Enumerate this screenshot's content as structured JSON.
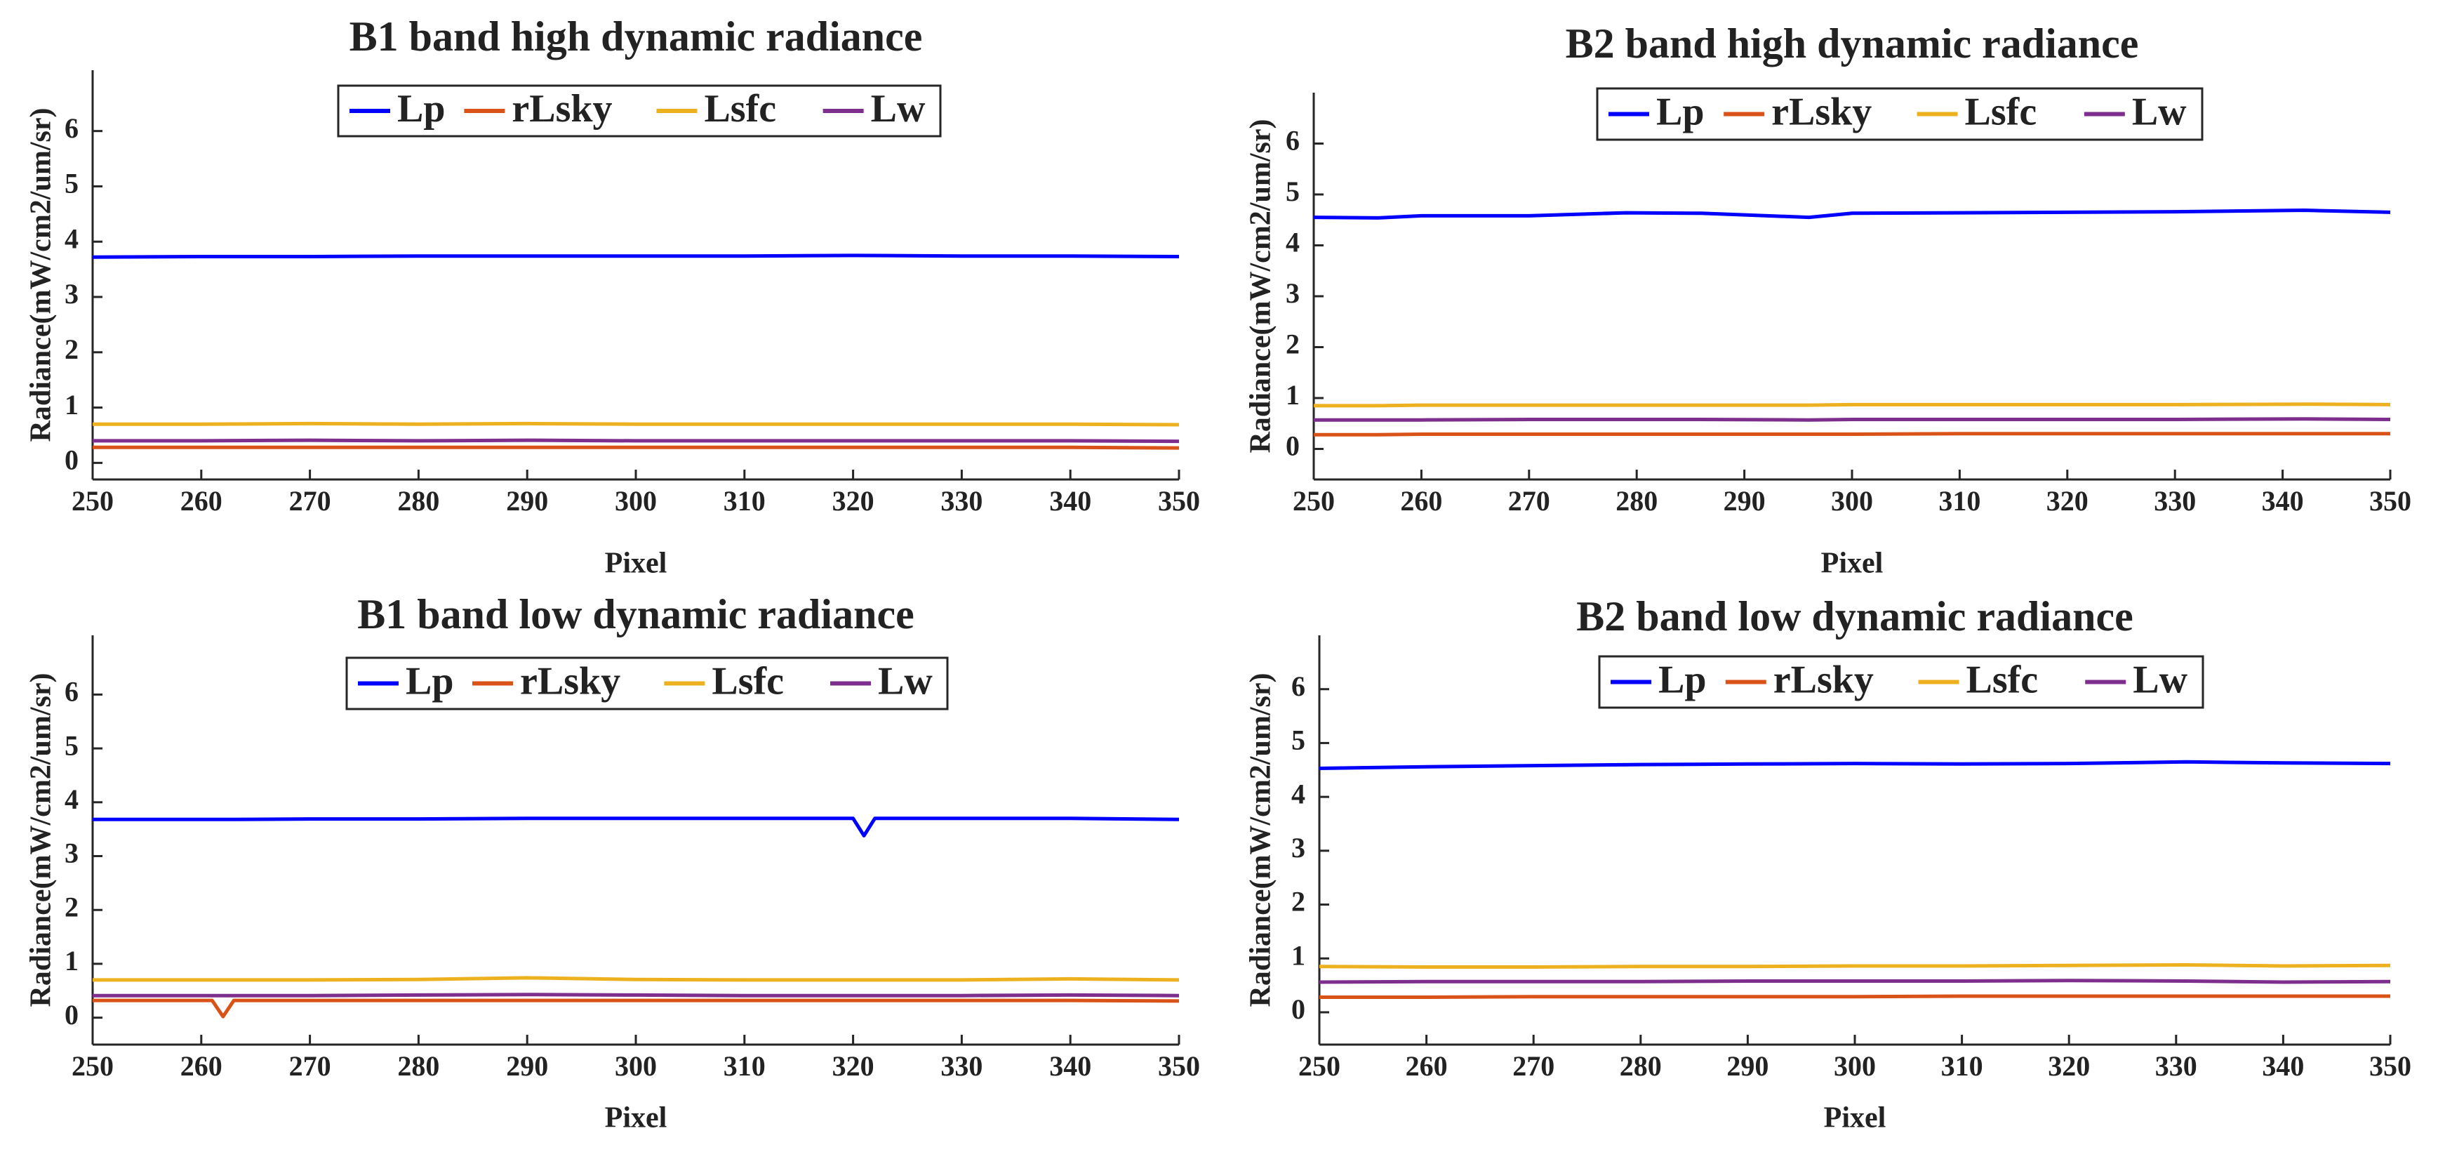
{
  "figure": {
    "background": "#ffffff",
    "axis_color": "#262626"
  },
  "legend_labels": [
    "Lp",
    "rLsky",
    "Lsfc",
    "Lw"
  ],
  "series_colors": {
    "Lp": "#0000ff",
    "rLsky": "#d95319",
    "Lsfc": "#edb120",
    "Lw": "#7e2f8e"
  },
  "chart_data": [
    {
      "type": "line",
      "title": "B1 band high dynamic radiance",
      "xlabel": "Pixel",
      "ylabel": "Radiance(mW/cm2/um/sr)",
      "xlim": [
        250,
        350
      ],
      "ylim": [
        -0.3,
        7.1
      ],
      "xticks": [
        "250",
        "260",
        "270",
        "280",
        "290",
        "300",
        "310",
        "320",
        "330",
        "340",
        "350"
      ],
      "yticks": [
        "0",
        "1",
        "2",
        "3",
        "4",
        "5",
        "6"
      ],
      "legend": "top-center",
      "x": [
        250,
        260,
        270,
        280,
        290,
        300,
        310,
        320,
        330,
        340,
        350
      ],
      "series": [
        {
          "name": "Lp",
          "values": [
            3.72,
            3.73,
            3.73,
            3.74,
            3.74,
            3.74,
            3.74,
            3.75,
            3.74,
            3.74,
            3.73
          ]
        },
        {
          "name": "rLsky",
          "values": [
            0.28,
            0.28,
            0.28,
            0.28,
            0.28,
            0.28,
            0.28,
            0.28,
            0.28,
            0.28,
            0.27
          ]
        },
        {
          "name": "Lsfc",
          "values": [
            0.7,
            0.7,
            0.71,
            0.7,
            0.71,
            0.7,
            0.7,
            0.7,
            0.7,
            0.7,
            0.69
          ]
        },
        {
          "name": "Lw",
          "values": [
            0.4,
            0.4,
            0.41,
            0.4,
            0.41,
            0.4,
            0.4,
            0.4,
            0.4,
            0.4,
            0.39
          ]
        }
      ]
    },
    {
      "type": "line",
      "title": "B2 band high dynamic radiance",
      "xlabel": "Pixel",
      "ylabel": "Radiance(mW/cm2/um/sr)",
      "xlim": [
        250,
        350
      ],
      "ylim": [
        -0.6,
        7.0
      ],
      "xticks": [
        "250",
        "260",
        "270",
        "280",
        "290",
        "300",
        "310",
        "320",
        "330",
        "340",
        "350"
      ],
      "yticks": [
        "0",
        "1",
        "2",
        "3",
        "4",
        "5",
        "6"
      ],
      "legend": "top-center",
      "x": [
        250,
        256,
        260,
        270,
        279,
        286,
        296,
        300,
        310,
        320,
        330,
        342,
        350
      ],
      "series": [
        {
          "name": "Lp",
          "values": [
            4.55,
            4.54,
            4.58,
            4.58,
            4.64,
            4.63,
            4.55,
            4.63,
            4.64,
            4.65,
            4.66,
            4.69,
            4.65
          ]
        },
        {
          "name": "rLsky",
          "values": [
            0.28,
            0.28,
            0.29,
            0.29,
            0.29,
            0.29,
            0.29,
            0.29,
            0.3,
            0.3,
            0.3,
            0.3,
            0.3
          ]
        },
        {
          "name": "Lsfc",
          "values": [
            0.85,
            0.85,
            0.86,
            0.86,
            0.86,
            0.86,
            0.86,
            0.87,
            0.87,
            0.87,
            0.87,
            0.88,
            0.87
          ]
        },
        {
          "name": "Lw",
          "values": [
            0.57,
            0.57,
            0.57,
            0.58,
            0.58,
            0.58,
            0.57,
            0.58,
            0.58,
            0.58,
            0.58,
            0.59,
            0.58
          ]
        }
      ]
    },
    {
      "type": "line",
      "title": "B1 band low dynamic radiance",
      "xlabel": "Pixel",
      "ylabel": "Radiance(mW/cm2/um/sr)",
      "xlim": [
        250,
        350
      ],
      "ylim": [
        -0.5,
        7.1
      ],
      "xticks": [
        "250",
        "260",
        "270",
        "280",
        "290",
        "300",
        "310",
        "320",
        "330",
        "340",
        "350"
      ],
      "yticks": [
        "0",
        "1",
        "2",
        "3",
        "4",
        "5",
        "6"
      ],
      "legend": "top-center",
      "x": [
        250,
        261,
        262,
        263,
        270,
        280,
        290,
        300,
        310,
        320,
        321,
        322,
        330,
        340,
        350
      ],
      "series": [
        {
          "name": "Lp",
          "values": [
            3.68,
            3.68,
            3.68,
            3.68,
            3.69,
            3.69,
            3.7,
            3.7,
            3.7,
            3.7,
            3.38,
            3.7,
            3.7,
            3.7,
            3.68
          ]
        },
        {
          "name": "rLsky",
          "values": [
            0.32,
            0.32,
            0.02,
            0.32,
            0.32,
            0.32,
            0.32,
            0.32,
            0.32,
            0.32,
            0.32,
            0.32,
            0.32,
            0.32,
            0.31
          ]
        },
        {
          "name": "Lsfc",
          "values": [
            0.7,
            0.7,
            0.7,
            0.7,
            0.7,
            0.71,
            0.74,
            0.71,
            0.7,
            0.7,
            0.7,
            0.7,
            0.7,
            0.72,
            0.7
          ]
        },
        {
          "name": "Lw",
          "values": [
            0.41,
            0.41,
            0.41,
            0.41,
            0.41,
            0.42,
            0.43,
            0.42,
            0.41,
            0.41,
            0.41,
            0.41,
            0.41,
            0.42,
            0.41
          ]
        }
      ]
    },
    {
      "type": "line",
      "title": "B2 band low dynamic radiance",
      "xlabel": "Pixel",
      "ylabel": "Radiance(mW/cm2/um/sr)",
      "xlim": [
        250,
        350
      ],
      "ylim": [
        -0.6,
        7.0
      ],
      "xticks": [
        "250",
        "260",
        "270",
        "280",
        "290",
        "300",
        "310",
        "320",
        "330",
        "340",
        "350"
      ],
      "yticks": [
        "0",
        "1",
        "2",
        "3",
        "4",
        "5",
        "6"
      ],
      "legend": "top-center",
      "x": [
        250,
        260,
        270,
        280,
        290,
        300,
        310,
        320,
        331,
        340,
        350
      ],
      "series": [
        {
          "name": "Lp",
          "values": [
            4.53,
            4.56,
            4.58,
            4.6,
            4.61,
            4.62,
            4.61,
            4.62,
            4.65,
            4.63,
            4.62
          ]
        },
        {
          "name": "rLsky",
          "values": [
            0.28,
            0.28,
            0.29,
            0.29,
            0.29,
            0.29,
            0.3,
            0.3,
            0.3,
            0.3,
            0.3
          ]
        },
        {
          "name": "Lsfc",
          "values": [
            0.85,
            0.84,
            0.84,
            0.85,
            0.85,
            0.86,
            0.86,
            0.87,
            0.88,
            0.86,
            0.87
          ]
        },
        {
          "name": "Lw",
          "values": [
            0.56,
            0.57,
            0.57,
            0.57,
            0.58,
            0.58,
            0.58,
            0.59,
            0.58,
            0.56,
            0.57
          ]
        }
      ]
    }
  ]
}
